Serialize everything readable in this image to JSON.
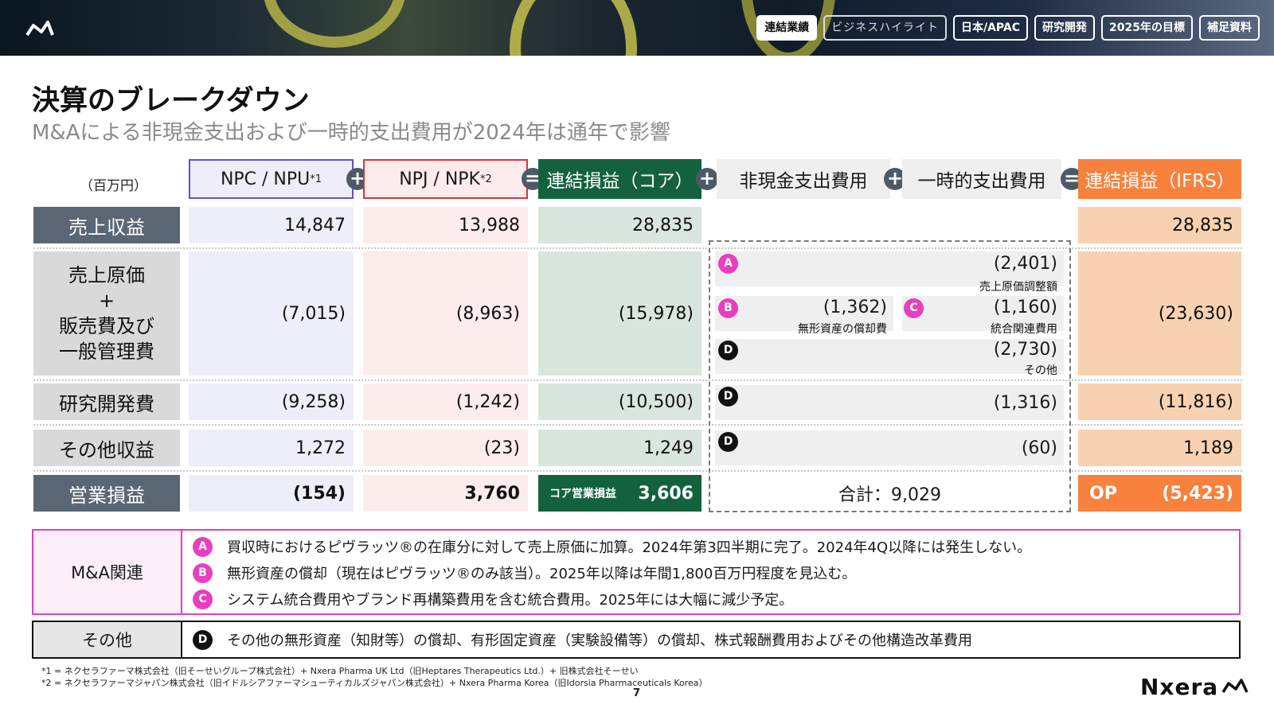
{
  "nav": [
    {
      "label": "連結業績",
      "state": "active"
    },
    {
      "label": "ビジネスハイライト",
      "state": "dim"
    },
    {
      "label": "日本/APAC",
      "state": "normal"
    },
    {
      "label": "研究開発",
      "state": "normal"
    },
    {
      "label": "2025年の目標",
      "state": "normal"
    },
    {
      "label": "補足資料",
      "state": "normal"
    }
  ],
  "title": "決算のブレークダウン",
  "subtitle": "M&Aによる非現金支出および一時的支出費用が2024年は通年で影響",
  "unit": "（百万円）",
  "columns": {
    "npc": {
      "label": "NPC / NPU",
      "sup": "*1"
    },
    "npj": {
      "label": "NPJ / NPK",
      "sup": "*2"
    },
    "core": {
      "label": "連結損益（コア）"
    },
    "noncash": {
      "label": "非現金支出費用"
    },
    "onetime": {
      "label": "一時的支出費用"
    },
    "ifrs": {
      "label": "連結損益（IFRS）"
    }
  },
  "operators": [
    "+",
    "=",
    "+",
    "+",
    "="
  ],
  "rows": {
    "revenue": {
      "label": "売上収益",
      "npc": "14,847",
      "npj": "13,988",
      "core": "28,835",
      "ifrs": "28,835"
    },
    "cogs": {
      "label_lines": [
        "売上原価",
        "+",
        "販売費及び",
        "一般管理費"
      ],
      "npc": "(7,015)",
      "npj": "(8,963)",
      "core": "(15,978)",
      "ifrs": "(23,630)"
    },
    "rnd": {
      "label": "研究開発費",
      "npc": "(9,258)",
      "npj": "(1,242)",
      "core": "(10,500)",
      "ifrs": "(11,816)"
    },
    "other": {
      "label": "その他収益",
      "npc": "1,272",
      "npj": "(23)",
      "core": "1,249",
      "ifrs": "1,189"
    },
    "op": {
      "label": "営業損益",
      "npc": "(154)",
      "npj": "3,760",
      "core_label": "コア営業損益",
      "core": "3,606",
      "ifrs_label": "OP",
      "ifrs": "(5,423)"
    }
  },
  "adjustments": {
    "a": {
      "badge": "A",
      "value": "(2,401)",
      "caption": "売上原価調整額"
    },
    "b": {
      "badge": "B",
      "value": "(1,362)",
      "caption": "無形資産の償却費"
    },
    "c": {
      "badge": "C",
      "value": "(1,160)",
      "caption": "統合関連費用"
    },
    "d1": {
      "badge": "D",
      "value": "(2,730)",
      "caption": "その他"
    },
    "d2": {
      "badge": "D",
      "value": "(1,316)"
    },
    "d3": {
      "badge": "D",
      "value": "(60)"
    },
    "total": "合計：9,029"
  },
  "notes": {
    "ma": {
      "label": "M&A関連",
      "items": [
        {
          "badge": "A",
          "text": "買収時におけるピヴラッツ®の在庫分に対して売上原価に加算。2024年第3四半期に完了。2024年4Q以降には発生しない。"
        },
        {
          "badge": "B",
          "text": "無形資産の償却（現在はピヴラッツ®のみ該当）。2025年以降は年間1,800百万円程度を見込む。"
        },
        {
          "badge": "C",
          "text": "システム統合費用やブランド再構築費用を含む統合費用。2025年には大幅に減少予定。"
        }
      ]
    },
    "other": {
      "label": "その他",
      "items": [
        {
          "badge": "D",
          "text": "その他の無形資産（知財等）の償却、有形固定資産（実験設備等）の償却、株式報酬費用およびその他構造改革費用"
        }
      ]
    }
  },
  "footnotes": [
    "*1 = ネクセラファーマ株式会社（旧そーせいグループ株式会社）+ Nxera Pharma UK Ltd（旧Heptares Therapeutics Ltd.）+ 旧株式会社そーせい",
    "*2 = ネクセラファーマジャパン株式会社（旧イドルシアファーマシューティカルズジャパン株式会社）+ Nxera Pharma Korea（旧Idorsia Pharmaceuticals Korea）"
  ],
  "page_number": "7",
  "brand": "Nxera",
  "colors": {
    "npc_border": "#5b4fd6",
    "npj_border": "#e0303a",
    "core_green": "#14623d",
    "ifrs_orange": "#f7813d",
    "badge_pink": "#e73fbd",
    "ma_border": "#e73fbd"
  }
}
